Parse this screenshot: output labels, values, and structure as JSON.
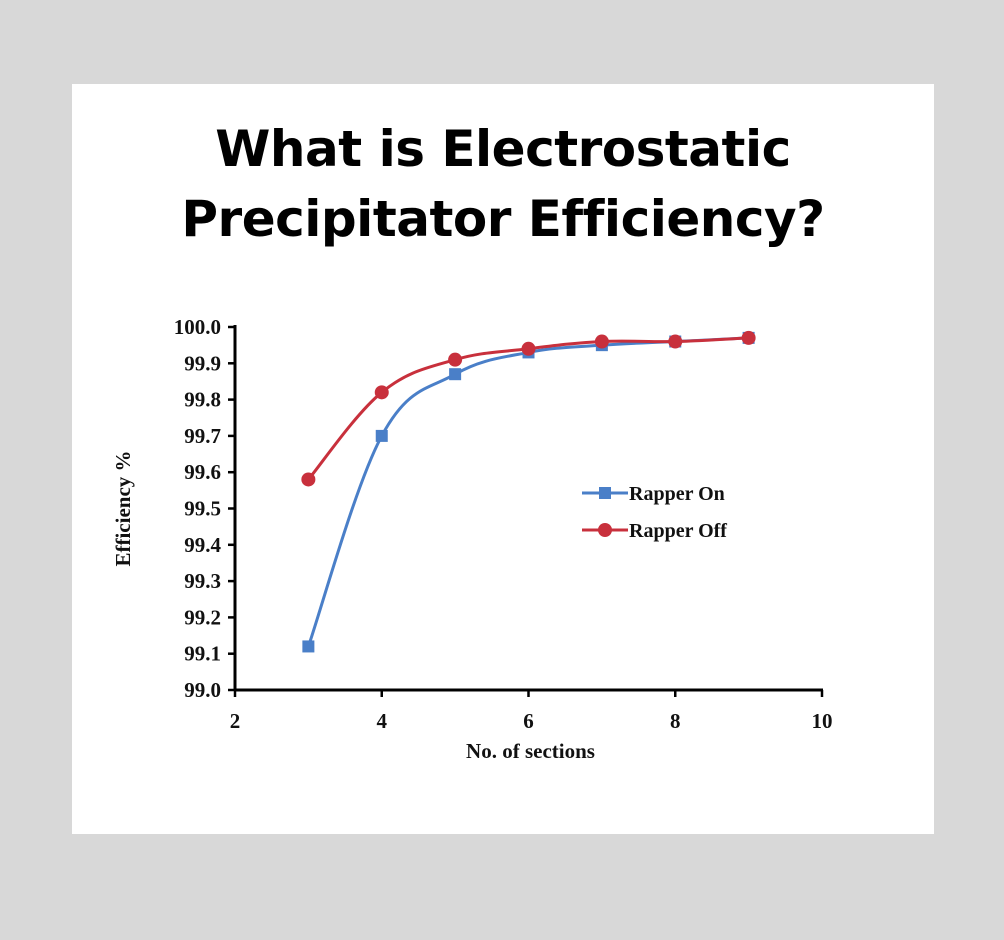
{
  "title": {
    "line1": "What is Electrostatic",
    "line2": "Precipitator Efficiency?"
  },
  "colors": {
    "background": "#d8d8d8",
    "panel": "#ffffff",
    "rapper_on": "#4a7fc8",
    "rapper_off": "#c8303c",
    "axis": "#000000"
  },
  "chart_data": {
    "type": "line",
    "title": "What is Electrostatic Precipitator Efficiency?",
    "xlabel": "No. of sections",
    "ylabel": "Efficiency %",
    "xlim": [
      2,
      10
    ],
    "ylim": [
      99.0,
      100.0
    ],
    "x_ticks": [
      "2",
      "4",
      "6",
      "8",
      "10"
    ],
    "y_ticks": [
      "99.0",
      "99.1",
      "99.2",
      "99.3",
      "99.4",
      "99.5",
      "99.6",
      "99.7",
      "99.8",
      "99.9",
      "100.0"
    ],
    "grid": false,
    "legend_position": "center-right",
    "x": [
      3,
      4,
      5,
      6,
      7,
      8,
      9
    ],
    "series": [
      {
        "name": "Rapper On",
        "marker": "square",
        "color": "#4a7fc8",
        "values": [
          99.12,
          99.7,
          99.87,
          99.93,
          99.95,
          99.96,
          99.97
        ]
      },
      {
        "name": "Rapper Off",
        "marker": "circle",
        "color": "#c8303c",
        "values": [
          99.58,
          99.82,
          99.91,
          99.94,
          99.96,
          99.96,
          99.97
        ]
      }
    ]
  }
}
